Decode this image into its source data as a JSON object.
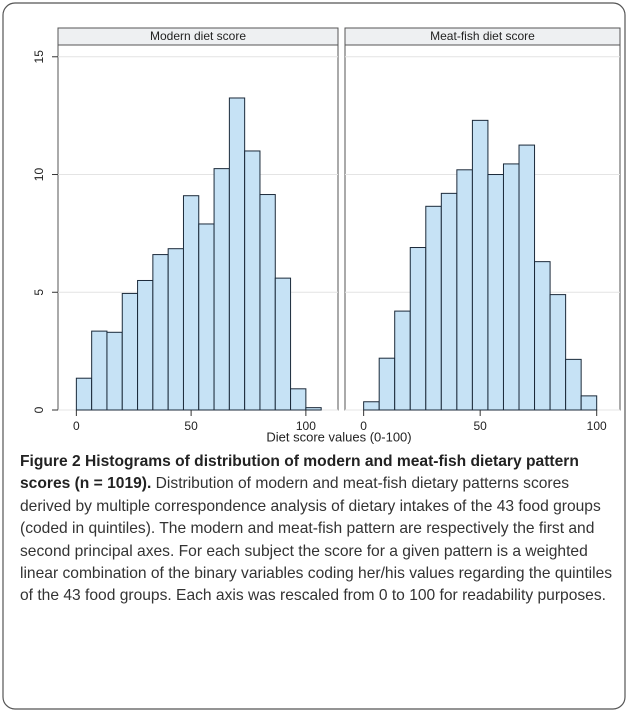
{
  "chart_data": [
    {
      "type": "histogram",
      "title": "Modern diet score",
      "bins": [
        0,
        6.67,
        13.33,
        20,
        26.67,
        33.33,
        40,
        46.67,
        53.33,
        60,
        66.67,
        73.33,
        80,
        86.67,
        93.33,
        100,
        106.67
      ],
      "counts": [
        1.35,
        3.35,
        3.3,
        4.95,
        5.5,
        6.6,
        6.85,
        9.1,
        7.9,
        10.25,
        13.25,
        11,
        9.15,
        5.6,
        0.9,
        0.1
      ],
      "color": "#c6e2f5",
      "xlim": [
        -8,
        114
      ],
      "ylim": [
        0,
        15.5
      ],
      "xticks": [
        0,
        50,
        100
      ],
      "yticks": [
        0,
        5,
        10,
        15
      ],
      "grid": true
    },
    {
      "type": "histogram",
      "title": "Meat-fish diet score",
      "bins": [
        0,
        6.67,
        13.33,
        20,
        26.67,
        33.33,
        40,
        46.67,
        53.33,
        60,
        66.67,
        73.33,
        80,
        86.67,
        93.33,
        100
      ],
      "counts": [
        0.35,
        2.2,
        4.2,
        6.9,
        8.65,
        9.2,
        10.2,
        12.3,
        10,
        10.45,
        11.25,
        6.3,
        4.9,
        2.15,
        0.6
      ],
      "color": "#c6e2f5",
      "xlim": [
        -8,
        110
      ],
      "ylim": [
        0,
        15.5
      ],
      "xticks": [
        0,
        50,
        100
      ],
      "yticks": [
        0,
        5,
        10,
        15
      ],
      "grid": true
    }
  ],
  "xlabel": "Diet score values (0-100)",
  "caption": {
    "label": "Figure 2",
    "title": "Histograms of distribution of modern and meat-fish dietary pattern scores (n = 1019).",
    "text": "Distribution of modern and meat-fish dietary patterns scores derived by multiple correspondence analysis of dietary intakes of the 43 food groups (coded in quintiles). The modern and meat-fish pattern are respectively the first and second principal axes. For each subject the score for a given pattern is a weighted linear combination of the binary variables coding her/his values regarding the quintiles of the 43 food groups. Each axis was rescaled from 0 to 100 for readability purposes."
  }
}
